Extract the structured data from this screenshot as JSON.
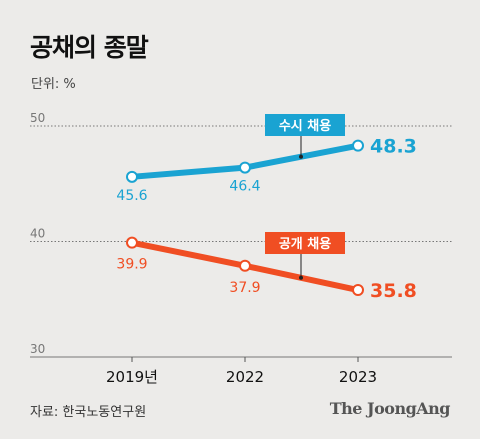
{
  "header": {
    "title": "공채의 종말",
    "unit": "단위: %"
  },
  "footer": {
    "source": "자료: 한국노동연구원",
    "brand": "The JoongAng"
  },
  "chart_data": {
    "type": "line",
    "title": "공채의 종말",
    "ylabel": "단위: %",
    "categories": [
      "2019년",
      "2022",
      "2023"
    ],
    "ylim": [
      30,
      52
    ],
    "yticks": [
      30,
      40,
      50
    ],
    "grid": true,
    "series": [
      {
        "name": "수시 채용",
        "values": [
          45.6,
          46.4,
          48.3
        ],
        "labels": [
          "45.6",
          "46.4",
          "48.3"
        ],
        "color": "#1aa3d2"
      },
      {
        "name": "공개 채용",
        "values": [
          39.9,
          37.9,
          35.8
        ],
        "labels": [
          "39.9",
          "37.9",
          "35.8"
        ],
        "color": "#f04e23"
      }
    ]
  }
}
